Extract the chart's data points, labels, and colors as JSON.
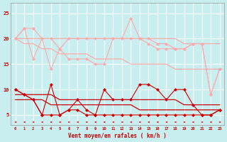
{
  "x": [
    0,
    1,
    2,
    3,
    4,
    5,
    6,
    7,
    8,
    9,
    10,
    11,
    12,
    13,
    14,
    15,
    16,
    17,
    18,
    19,
    20,
    21,
    22,
    23
  ],
  "rafales_jagged1": [
    20,
    22,
    22,
    20,
    20,
    18,
    20,
    20,
    20,
    20,
    20,
    20,
    20,
    24,
    20,
    20,
    19,
    19,
    18,
    18,
    19,
    19,
    9,
    14
  ],
  "rafales_jagged2": [
    20,
    22,
    16,
    20,
    14,
    18,
    16,
    16,
    16,
    15,
    15,
    20,
    20,
    20,
    20,
    19,
    18,
    18,
    18,
    18,
    19,
    19,
    9,
    14
  ],
  "rafales_trend1": [
    20,
    20,
    20,
    20,
    20,
    20,
    20,
    20,
    20,
    20,
    20,
    20,
    20,
    20,
    20,
    20,
    20,
    20,
    20,
    19,
    19,
    19,
    19,
    19
  ],
  "rafales_trend2": [
    20,
    19,
    19,
    18,
    18,
    17,
    17,
    17,
    17,
    16,
    16,
    16,
    16,
    15,
    15,
    15,
    15,
    15,
    14,
    14,
    14,
    14,
    14,
    14
  ],
  "vent_jagged1": [
    10,
    9,
    8,
    5,
    11,
    5,
    6,
    8,
    6,
    5,
    10,
    8,
    8,
    8,
    11,
    11,
    10,
    8,
    10,
    10,
    7,
    5,
    5,
    6
  ],
  "vent_jagged2": [
    10,
    9,
    8,
    5,
    5,
    5,
    6,
    6,
    5,
    5,
    5,
    5,
    5,
    5,
    5,
    5,
    5,
    5,
    5,
    5,
    5,
    5,
    5,
    6
  ],
  "vent_trend1": [
    9,
    9,
    9,
    9,
    9,
    8,
    8,
    8,
    8,
    8,
    8,
    8,
    8,
    8,
    8,
    8,
    8,
    8,
    8,
    7,
    7,
    7,
    7,
    7
  ],
  "vent_trend2": [
    8,
    8,
    8,
    8,
    7,
    7,
    7,
    7,
    7,
    7,
    7,
    7,
    7,
    7,
    6,
    6,
    6,
    6,
    6,
    6,
    6,
    6,
    6,
    6
  ],
  "bg_color": "#c8eef0",
  "grid_color": "#ffffff",
  "lp_color": "#ffaaaa",
  "dr_color": "#cc0000",
  "xlabel": "Vent moyen/en rafales ( km/h )",
  "yticks": [
    5,
    10,
    15,
    20,
    25
  ],
  "xlim": [
    -0.5,
    23.5
  ],
  "ylim": [
    3.0,
    27.0
  ]
}
